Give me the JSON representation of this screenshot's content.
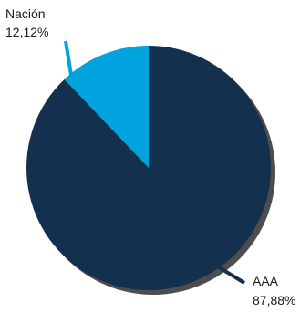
{
  "chart_data": {
    "type": "pie",
    "slices": [
      {
        "label": "AAA",
        "value_label": "87,88%",
        "value": 87.88,
        "color": "#13304f"
      },
      {
        "label": "Nación",
        "value_label": "12,12%",
        "value": 12.12,
        "color": "#00a3de"
      }
    ],
    "start_angle_deg": 0,
    "direction": "clockwise",
    "shadow_color": "#4d4d4d"
  }
}
